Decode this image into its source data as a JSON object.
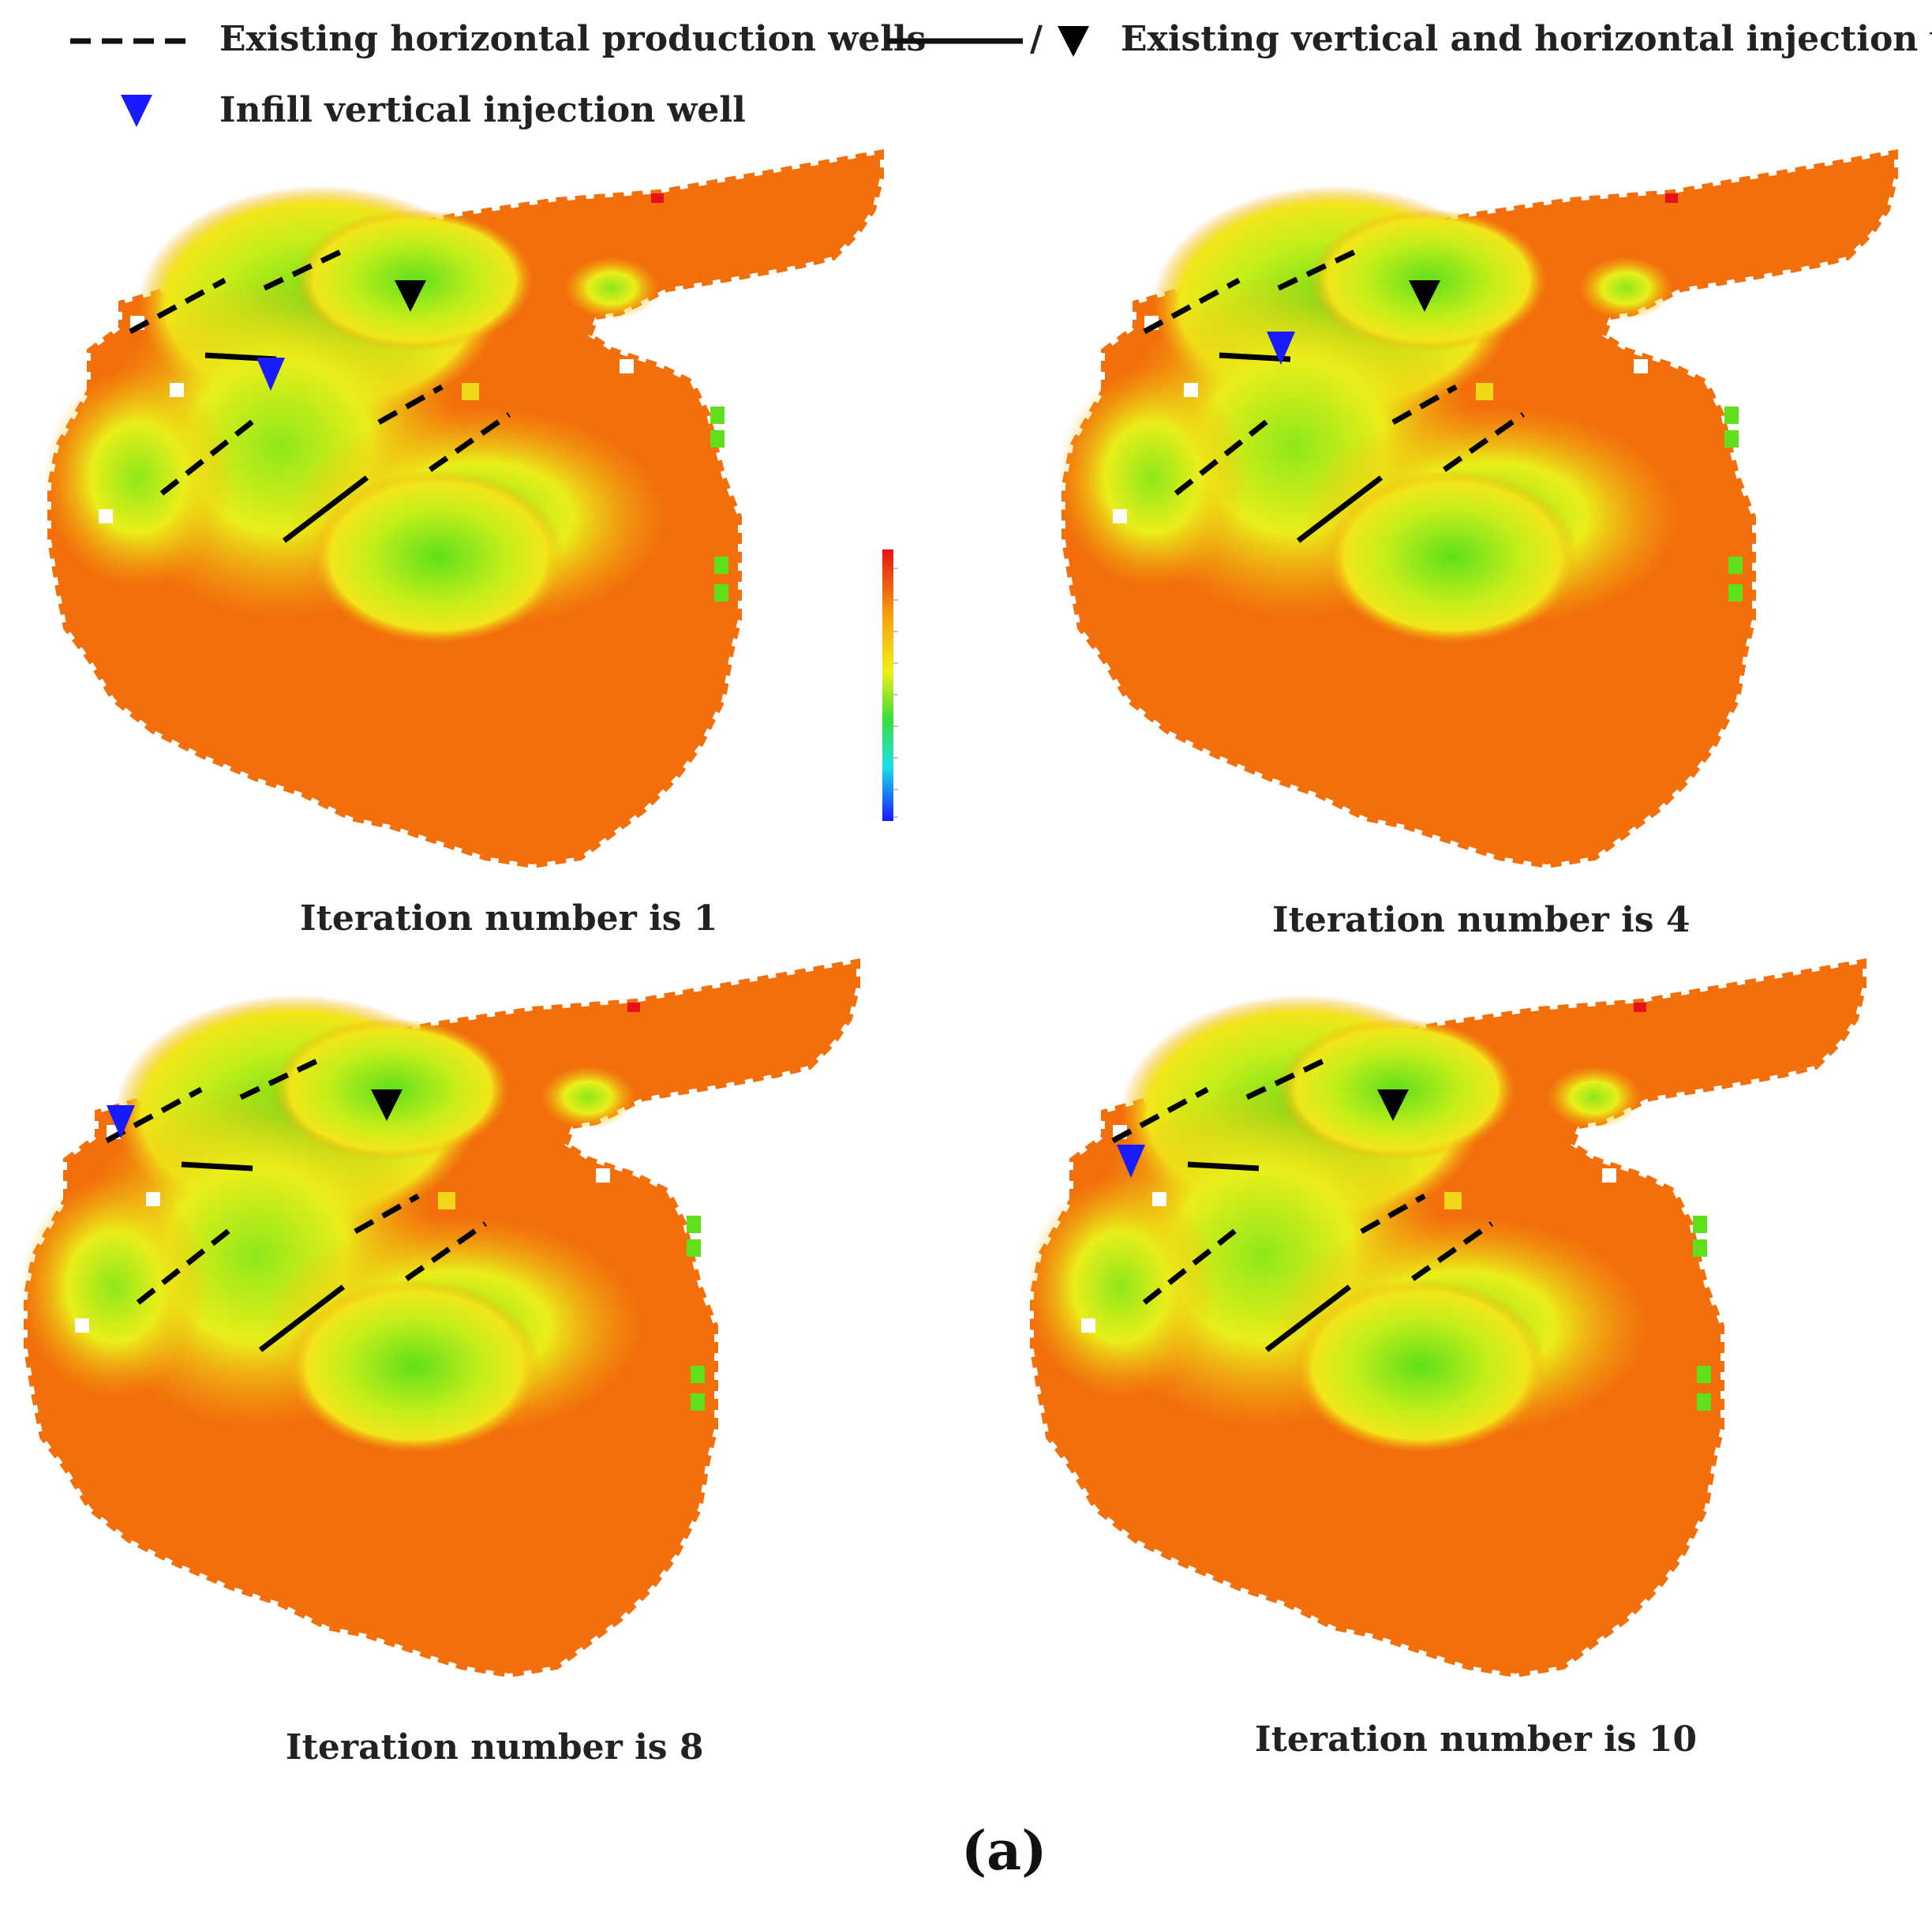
{
  "legend": {
    "production_wells": "Existing horizontal production wells",
    "injection_wells": "Existing vertical and horizontal injection wells",
    "injection_separator": "/",
    "infill_well": "Infill vertical injection well"
  },
  "panels": [
    {
      "caption": "Iteration number is 1",
      "infill_well_icon": "blue-triangle-icon"
    },
    {
      "caption": "Iteration number is 4",
      "infill_well_icon": "blue-triangle-icon"
    },
    {
      "caption": "Iteration number is 8",
      "infill_well_icon": "blue-triangle-icon"
    },
    {
      "caption": "Iteration number is 10",
      "infill_well_icon": "blue-triangle-icon"
    }
  ],
  "figure_label": "(a)",
  "colors": {
    "background_field": "#f26f0c",
    "high_saturation": "#7ee81a",
    "mid": "#f2e81a",
    "injector_existing": "#000000",
    "injector_infill": "#1a1aff",
    "production_dash": "#000000"
  }
}
